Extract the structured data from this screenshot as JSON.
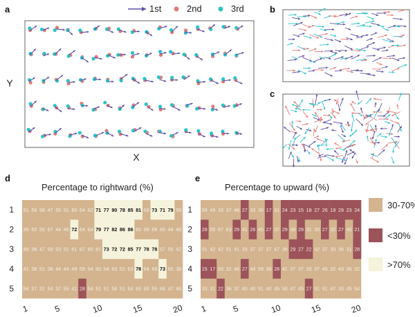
{
  "panel_labels": {
    "a": "a",
    "b": "b",
    "c": "c",
    "d": "d",
    "e": "e"
  },
  "legend_a": {
    "items": [
      "1st",
      "2nd",
      "3rd"
    ],
    "colors": [
      "#5d4fa3",
      "#e07b78",
      "#2cc2c9"
    ]
  },
  "axes_a": {
    "xlabel": "X",
    "ylabel": "Y"
  },
  "legend_e": {
    "items": [
      "30-70%",
      "<30%",
      ">70%"
    ],
    "colors": [
      "#d3b48f",
      "#9c5359",
      "#f6f3dc"
    ]
  },
  "chart_data": [
    {
      "type": "heatmap",
      "title": "Percentage to rightward (%)",
      "x_ticks": [
        "1",
        "5",
        "10",
        "15",
        "20"
      ],
      "y_ticks": [
        "1",
        "2",
        "3",
        "4",
        "5"
      ],
      "rows": [
        [
          51,
          56,
          58,
          47,
          55,
          51,
          60,
          64,
          62,
          71,
          77,
          90,
          78,
          85,
          81,
          68,
          73,
          71,
          79,
          58
        ],
        [
          45,
          50,
          55,
          67,
          44,
          46,
          72,
          64,
          64,
          79,
          77,
          82,
          86,
          86,
          60,
          69,
          69,
          65,
          44,
          45
        ],
        [
          49,
          36,
          47,
          59,
          53,
          51,
          61,
          67,
          60,
          61,
          73,
          72,
          72,
          85,
          77,
          78,
          78,
          57,
          50,
          42
        ],
        [
          41,
          38,
          51,
          38,
          44,
          44,
          49,
          55,
          54,
          50,
          54,
          63,
          51,
          63,
          78,
          64,
          68,
          73,
          65,
          38
        ],
        [
          56,
          37,
          31,
          54,
          37,
          55,
          41,
          28,
          54,
          51,
          51,
          58,
          51,
          64,
          65,
          69,
          55,
          68,
          47,
          46
        ]
      ],
      "bins": {
        "low": "<30%",
        "mid": "30-70%",
        "high": ">70%"
      }
    },
    {
      "type": "heatmap",
      "title": "Percentage to upward (%)",
      "x_ticks": [
        "1",
        "5",
        "10",
        "15",
        "20"
      ],
      "y_ticks": [
        "1",
        "2",
        "3",
        "4",
        "5"
      ],
      "rows": [
        [
          59,
          49,
          33,
          37,
          48,
          27,
          33,
          36,
          17,
          31,
          24,
          23,
          15,
          18,
          27,
          26,
          19,
          29,
          23,
          24
        ],
        [
          28,
          55,
          67,
          63,
          29,
          41,
          26,
          45,
          27,
          37,
          29,
          38,
          29,
          31,
          33,
          27,
          32,
          27,
          40,
          21
        ],
        [
          51,
          42,
          42,
          51,
          41,
          33,
          37,
          37,
          37,
          47,
          36,
          29,
          27,
          22,
          42,
          37,
          33,
          36,
          31,
          28
        ],
        [
          15,
          17,
          33,
          32,
          46,
          27,
          44,
          59,
          36,
          28,
          41,
          37,
          37,
          33,
          37,
          45,
          32,
          43,
          36,
          32
        ],
        [
          33,
          31,
          22,
          36,
          37,
          40,
          40,
          51,
          40,
          45,
          50,
          47,
          45,
          27,
          51,
          51,
          47,
          33,
          45,
          54
        ]
      ],
      "bins": {
        "low": "<30%",
        "mid": "30-70%",
        "high": ">70%"
      }
    }
  ]
}
